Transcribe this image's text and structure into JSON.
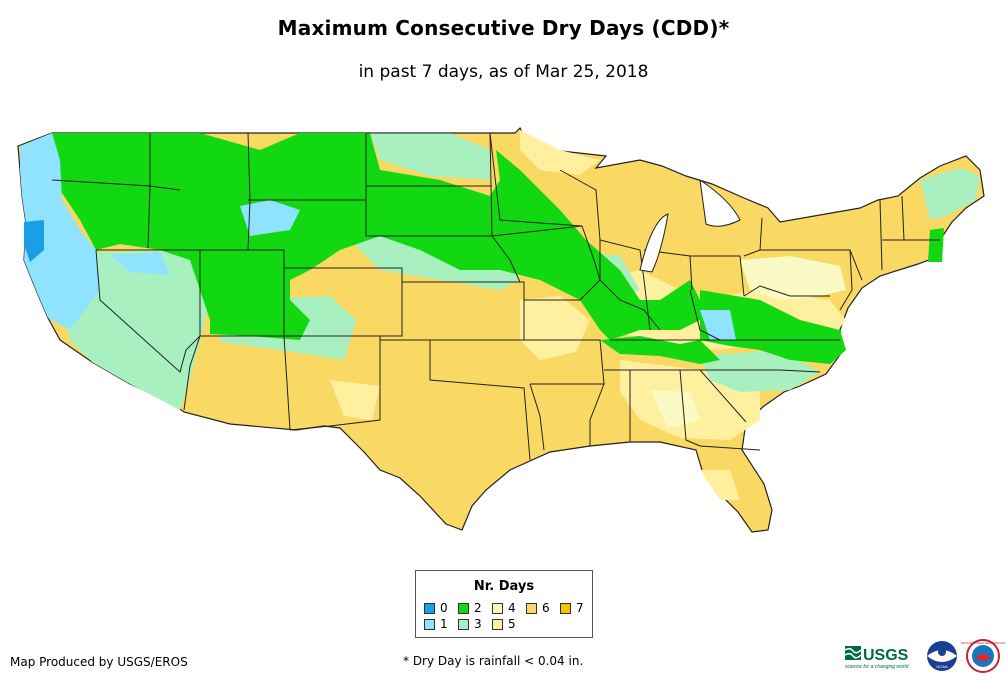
{
  "title": "Maximum Consecutive Dry Days (CDD)*",
  "subtitle": "in past 7 days, as of Mar 25, 2018",
  "legend": {
    "title": "Nr. Days",
    "items": [
      {
        "label": "0",
        "color": "#1a9ee6"
      },
      {
        "label": "1",
        "color": "#8fe3ff"
      },
      {
        "label": "2",
        "color": "#12d812"
      },
      {
        "label": "3",
        "color": "#a8f0c0"
      },
      {
        "label": "4",
        "color": "#fafac4"
      },
      {
        "label": "5",
        "color": "#fff0a0"
      },
      {
        "label": "6",
        "color": "#f9d864"
      },
      {
        "label": "7",
        "color": "#f5c400"
      }
    ]
  },
  "credit": "Map Produced by USGS/EROS",
  "footnote": "* Dry Day is rainfall < 0.04 in.",
  "logos": {
    "usgs": "USGS",
    "usgs_tagline": "science for a changing world",
    "noaa": "NOAA",
    "nws": "NATIONAL WEATHER SERVICE"
  },
  "colors": {
    "border": "#222222"
  }
}
